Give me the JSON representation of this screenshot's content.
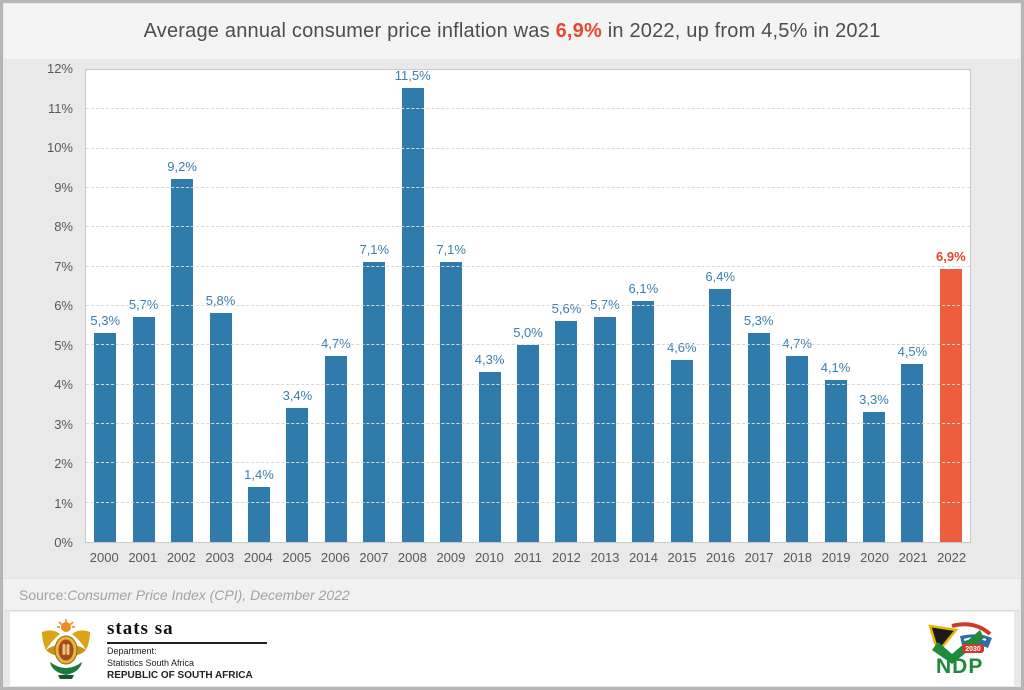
{
  "title": {
    "part1": "Average annual consumer price inflation was ",
    "accent": "6,9%",
    "part2": " in 2022, up from 4,5% in 2021",
    "accent_color": "#e8482f",
    "text_color": "#4d4d4d"
  },
  "chart_data": {
    "type": "bar",
    "title": "Average annual consumer price inflation was 6,9% in 2022, up from 4,5% in 2021",
    "categories": [
      "2000",
      "2001",
      "2002",
      "2003",
      "2004",
      "2005",
      "2006",
      "2007",
      "2008",
      "2009",
      "2010",
      "2011",
      "2012",
      "2013",
      "2014",
      "2015",
      "2016",
      "2017",
      "2018",
      "2019",
      "2020",
      "2021",
      "2022"
    ],
    "values": [
      5.3,
      5.7,
      9.2,
      5.8,
      1.4,
      3.4,
      4.7,
      7.1,
      11.5,
      7.1,
      4.3,
      5.0,
      5.6,
      5.7,
      6.1,
      4.6,
      6.4,
      5.3,
      4.7,
      4.1,
      3.3,
      4.5,
      6.9
    ],
    "value_labels": [
      "5,3%",
      "5,7%",
      "9,2%",
      "5,8%",
      "1,4%",
      "3,4%",
      "4,7%",
      "7,1%",
      "11,5%",
      "7,1%",
      "4,3%",
      "5,0%",
      "5,6%",
      "5,7%",
      "6,1%",
      "4,6%",
      "6,4%",
      "5,3%",
      "4,7%",
      "4,1%",
      "3,3%",
      "4,5%",
      "6,9%"
    ],
    "highlight_index": 22,
    "bar_color": "#2e7bac",
    "highlight_color": "#ec5e3e",
    "label_color": "#3a7fae",
    "highlight_label_color": "#e0462f",
    "xlabel": "",
    "ylabel": "",
    "ylim": [
      0,
      12
    ],
    "ytick_step": 1,
    "ytick_suffix": "%",
    "grid": "horizontal-dashed",
    "legend": "none"
  },
  "source": {
    "label": "Source:",
    "text": " Consumer Price Index (CPI), December 2022"
  },
  "footer": {
    "statssa": {
      "name": "stats sa",
      "dept_line1": "Department:",
      "dept_line2": "Statistics South Africa",
      "dept_line3": "REPUBLIC OF SOUTH AFRICA"
    },
    "ndp": {
      "acronym": "NDP",
      "year": "2030"
    }
  }
}
